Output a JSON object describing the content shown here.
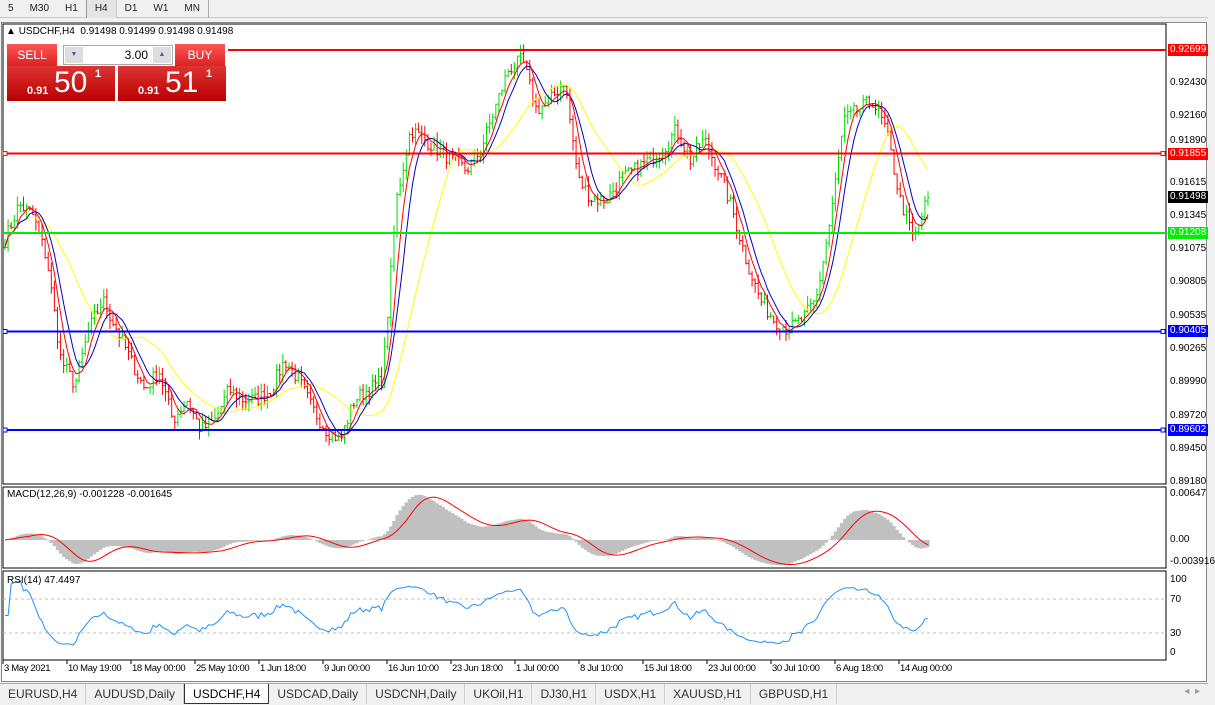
{
  "toolbar": {
    "timeframes": [
      "5",
      "M30",
      "H1",
      "H4",
      "D1",
      "W1",
      "MN"
    ],
    "active": "H4"
  },
  "chart": {
    "title": "USDCHF,H4",
    "ohlc": "0.91498 0.91499 0.91498 0.91498"
  },
  "trade_panel": {
    "sell_label": "SELL",
    "buy_label": "BUY",
    "lots": "3.00",
    "sell_prefix": "0.91",
    "sell_big": "50",
    "sell_sup": "1",
    "buy_prefix": "0.91",
    "buy_big": "51",
    "buy_sup": "1"
  },
  "price_axis": [
    "0.92430",
    "0.92160",
    "0.91890",
    "0.91615",
    "0.91345",
    "0.91075",
    "0.90805",
    "0.90535",
    "0.90265",
    "0.89990",
    "0.89720",
    "0.89450",
    "0.89180"
  ],
  "levels": [
    {
      "price": 0.92699,
      "label": "0.92699",
      "color": "#ff0000"
    },
    {
      "price": 0.91855,
      "label": "0.91855",
      "color": "#ff0000"
    },
    {
      "price": 0.91208,
      "label": "0.91208",
      "color": "#00ee00"
    },
    {
      "price": 0.90405,
      "label": "0.90405",
      "color": "#0000ff"
    },
    {
      "price": 0.89602,
      "label": "0.89602",
      "color": "#0000ff"
    }
  ],
  "current_price": "0.91498",
  "price_path": [
    0.9115,
    0.9144,
    0.9135,
    0.9099,
    0.9017,
    0.8997,
    0.9042,
    0.9066,
    0.9042,
    0.9017,
    0.8993,
    0.9009,
    0.8968,
    0.8985,
    0.896,
    0.8968,
    0.8993,
    0.8985,
    0.8985,
    0.8993,
    0.9017,
    0.9001,
    0.8977,
    0.896,
    0.8952,
    0.8985,
    0.8993,
    0.9001,
    0.9148,
    0.9205,
    0.9197,
    0.9188,
    0.918,
    0.9172,
    0.9188,
    0.9221,
    0.9254,
    0.9262,
    0.9221,
    0.9229,
    0.9245,
    0.9164,
    0.9148,
    0.9148,
    0.9164,
    0.9172,
    0.918,
    0.9188,
    0.9205,
    0.918,
    0.9197,
    0.9172,
    0.914,
    0.9099,
    0.9066,
    0.905,
    0.9042,
    0.905,
    0.9066,
    0.9131,
    0.9213,
    0.9221,
    0.9229,
    0.9205,
    0.9148,
    0.9115,
    0.915
  ],
  "colors": {
    "bull": "#00dd00",
    "bear": "#ff0000",
    "ma_fast": "#ff0000",
    "ma_mid": "#0000cc",
    "ma_slow": "#ffff00",
    "macd_hist": "#c0c0c0",
    "macd_signal": "#ff0000",
    "rsi": "#1e90ff"
  },
  "macd": {
    "label": "MACD(12,26,9) -0.001228 -0.001645",
    "axis": [
      "0.00647",
      "0.00",
      "-0.003916"
    ]
  },
  "rsi": {
    "label": "RSI(14) 47.4497",
    "axis": [
      "100",
      "70",
      "30",
      "0"
    ]
  },
  "dates": [
    "3 May 2021",
    "10 May 19:00",
    "18 May 00:00",
    "25 May 10:00",
    "1 Jun 18:00",
    "9 Jun 00:00",
    "16 Jun 10:00",
    "23 Jun 18:00",
    "1 Jul 00:00",
    "8 Jul 10:00",
    "15 Jul 18:00",
    "23 Jul 00:00",
    "30 Jul 10:00",
    "6 Aug 18:00",
    "14 Aug 00:00"
  ],
  "tabs": [
    "EURUSD,H4",
    "AUDUSD,Daily",
    "USDCHF,H4",
    "USDCAD,Daily",
    "USDCNH,Daily",
    "UKOil,H1",
    "DJ30,H1",
    "USDX,H1",
    "XAUUSD,H1",
    "GBPUSD,H1"
  ],
  "active_tab": "USDCHF,H4"
}
